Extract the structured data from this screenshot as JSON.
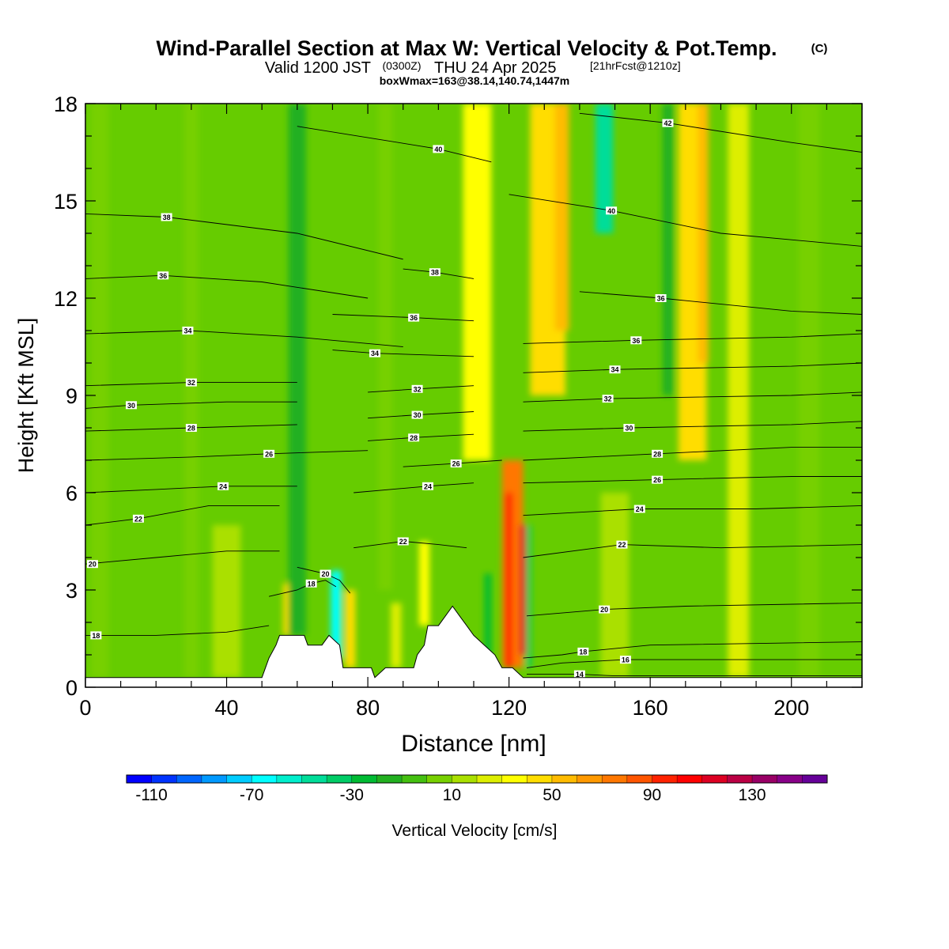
{
  "header": {
    "title": "Wind-Parallel Section at Max W: Vertical Velocity & Pot.Temp.",
    "title_mark": "(C)",
    "valid_prefix": "Valid 1200 JST",
    "valid_zulu": "(0300Z)",
    "valid_date": "THU 24 Apr 2025",
    "forecast_tag": "[21hrFcst@1210z]",
    "box_info": "boxWmax=163@38.14,140.74,1447m"
  },
  "chart_data": {
    "type": "heatmap",
    "xlabel": "Distance [nm]",
    "ylabel": "Height [Kft MSL]",
    "xlim": [
      0,
      220
    ],
    "ylim": [
      0,
      18
    ],
    "x_ticks": [
      "0",
      "40",
      "80",
      "120",
      "160",
      "200"
    ],
    "y_ticks": [
      "0",
      "3",
      "6",
      "9",
      "12",
      "15",
      "18"
    ],
    "colorbar": {
      "label": "Vertical Velocity [cm/s]",
      "tick_labels": [
        "-110",
        "-70",
        "-30",
        "10",
        "50",
        "90",
        "130"
      ],
      "colors": [
        "#0000ff",
        "#0033ff",
        "#0066ff",
        "#0099ff",
        "#00ccff",
        "#00ffff",
        "#00eecc",
        "#00dd99",
        "#00cc66",
        "#00bb33",
        "#22b020",
        "#44c010",
        "#77d000",
        "#aae000",
        "#ddee00",
        "#ffff00",
        "#ffdd00",
        "#ffbb00",
        "#ff9900",
        "#ff7700",
        "#ff5500",
        "#ff2200",
        "#ff0000",
        "#dd0022",
        "#bb0044",
        "#990066",
        "#880088",
        "#660099"
      ]
    },
    "background_color": "#66cc00",
    "terrain_profile": [
      [
        0,
        0.3
      ],
      [
        50,
        0.3
      ],
      [
        52,
        0.9
      ],
      [
        54,
        1.3
      ],
      [
        55,
        1.6
      ],
      [
        62,
        1.6
      ],
      [
        63,
        1.3
      ],
      [
        67,
        1.3
      ],
      [
        69,
        1.6
      ],
      [
        72,
        1.3
      ],
      [
        73,
        0.6
      ],
      [
        81,
        0.6
      ],
      [
        82,
        0.3
      ],
      [
        85,
        0.6
      ],
      [
        93,
        0.6
      ],
      [
        94,
        1.0
      ],
      [
        96,
        1.3
      ],
      [
        97,
        1.9
      ],
      [
        100,
        1.9
      ],
      [
        102,
        2.2
      ],
      [
        104,
        2.5
      ],
      [
        106,
        2.2
      ],
      [
        108,
        1.9
      ],
      [
        110,
        1.6
      ],
      [
        113,
        1.3
      ],
      [
        116,
        1.0
      ],
      [
        118,
        0.6
      ],
      [
        121,
        0.6
      ],
      [
        124,
        0.3
      ],
      [
        220,
        0.3
      ]
    ],
    "vv_bands": [
      {
        "x": 109,
        "width": 4,
        "y0": 7,
        "y1": 18,
        "value": 60
      },
      {
        "x": 111,
        "width": 8,
        "y0": 7,
        "y1": 18,
        "value": 30
      },
      {
        "x": 131,
        "width": 10,
        "y0": 9,
        "y1": 18,
        "value": 40
      },
      {
        "x": 135,
        "width": 4,
        "y0": 11,
        "y1": 18,
        "value": 55
      },
      {
        "x": 147,
        "width": 5,
        "y0": 14,
        "y1": 18,
        "value": -50
      },
      {
        "x": 165,
        "width": 3,
        "y0": 9,
        "y1": 18,
        "value": -20
      },
      {
        "x": 172,
        "width": 8,
        "y0": 7,
        "y1": 18,
        "value": 40
      },
      {
        "x": 175,
        "width": 3,
        "y0": 10,
        "y1": 18,
        "value": 55
      },
      {
        "x": 121,
        "width": 6,
        "y0": 0.6,
        "y1": 7,
        "value": 70
      },
      {
        "x": 120,
        "width": 2,
        "y0": 0.6,
        "y1": 6,
        "value": 95
      },
      {
        "x": 124,
        "width": 2,
        "y0": 1.0,
        "y1": 5,
        "value": 115
      },
      {
        "x": 125.5,
        "width": 1.5,
        "y0": 0.6,
        "y1": 5,
        "value": -40
      },
      {
        "x": 71,
        "width": 3,
        "y0": 0.9,
        "y1": 3.6,
        "value": -70
      },
      {
        "x": 75,
        "width": 3,
        "y0": 0.6,
        "y1": 3,
        "value": 40
      },
      {
        "x": 57,
        "width": 2,
        "y0": 1.6,
        "y1": 3.2,
        "value": 40
      },
      {
        "x": 96,
        "width": 3,
        "y0": 1.9,
        "y1": 4.5,
        "value": 30
      },
      {
        "x": 88,
        "width": 3,
        "y0": 0.6,
        "y1": 2.6,
        "value": 25
      },
      {
        "x": 114,
        "width": 2,
        "y0": 1.0,
        "y1": 3.5,
        "value": -30
      },
      {
        "x": 4,
        "width": 5,
        "y0": 0.3,
        "y1": 18,
        "value": 0
      },
      {
        "x": 30,
        "width": 4,
        "y0": 0.3,
        "y1": 18,
        "value": 0
      },
      {
        "x": 60,
        "width": 5,
        "y0": 1.6,
        "y1": 18,
        "value": -20
      },
      {
        "x": 85,
        "width": 4,
        "y0": 3,
        "y1": 18,
        "value": 0
      },
      {
        "x": 185,
        "width": 6,
        "y0": 0.3,
        "y1": 18,
        "value": 20
      },
      {
        "x": 205,
        "width": 6,
        "y0": 0.3,
        "y1": 18,
        "value": 0
      },
      {
        "x": 150,
        "width": 8,
        "y0": 0.3,
        "y1": 6,
        "value": 15
      },
      {
        "x": 40,
        "width": 8,
        "y0": 0.3,
        "y1": 5,
        "value": 15
      }
    ],
    "theta_contours": [
      {
        "label": "14",
        "lx": 140,
        "ly": 0.4,
        "points": [
          [
            125,
            0.4
          ],
          [
            140,
            0.4
          ],
          [
            150,
            0.35
          ],
          [
            170,
            0.35
          ],
          [
            220,
            0.35
          ]
        ]
      },
      {
        "label": "16",
        "lx": 153,
        "ly": 0.85,
        "points": [
          [
            125,
            0.6
          ],
          [
            135,
            0.75
          ],
          [
            153,
            0.85
          ],
          [
            180,
            0.85
          ],
          [
            220,
            0.85
          ]
        ]
      },
      {
        "label": "18",
        "lx": 141,
        "ly": 1.1,
        "points": [
          [
            124,
            0.9
          ],
          [
            135,
            1.0
          ],
          [
            141,
            1.1
          ],
          [
            160,
            1.3
          ],
          [
            220,
            1.4
          ]
        ]
      },
      {
        "label": "18",
        "lx": 3,
        "ly": 1.6,
        "points": [
          [
            0,
            1.6
          ],
          [
            20,
            1.6
          ],
          [
            40,
            1.7
          ],
          [
            52,
            1.9
          ]
        ]
      },
      {
        "label": "18",
        "lx": 64,
        "ly": 3.2,
        "points": [
          [
            52,
            2.8
          ],
          [
            60,
            3.0
          ],
          [
            64,
            3.2
          ],
          [
            68,
            3.3
          ],
          [
            71,
            3.1
          ]
        ]
      },
      {
        "label": "20",
        "lx": 147,
        "ly": 2.4,
        "points": [
          [
            125,
            2.2
          ],
          [
            147,
            2.4
          ],
          [
            170,
            2.5
          ],
          [
            220,
            2.6
          ]
        ]
      },
      {
        "label": "20",
        "lx": 2,
        "ly": 3.8,
        "points": [
          [
            0,
            3.8
          ],
          [
            20,
            4.0
          ],
          [
            40,
            4.2
          ],
          [
            55,
            4.2
          ]
        ]
      },
      {
        "label": "20",
        "lx": 68,
        "ly": 3.5,
        "points": [
          [
            60,
            3.7
          ],
          [
            68,
            3.5
          ],
          [
            72,
            3.3
          ],
          [
            75,
            2.9
          ]
        ]
      },
      {
        "label": "22",
        "lx": 152,
        "ly": 4.4,
        "points": [
          [
            124,
            4.0
          ],
          [
            152,
            4.4
          ],
          [
            180,
            4.3
          ],
          [
            220,
            4.4
          ]
        ]
      },
      {
        "label": "22",
        "lx": 90,
        "ly": 4.5,
        "points": [
          [
            76,
            4.3
          ],
          [
            90,
            4.5
          ],
          [
            100,
            4.4
          ],
          [
            108,
            4.3
          ]
        ]
      },
      {
        "label": "22",
        "lx": 15,
        "ly": 5.2,
        "points": [
          [
            0,
            5.0
          ],
          [
            15,
            5.2
          ],
          [
            35,
            5.6
          ],
          [
            55,
            5.6
          ]
        ]
      },
      {
        "label": "24",
        "lx": 157,
        "ly": 5.5,
        "points": [
          [
            124,
            5.3
          ],
          [
            157,
            5.5
          ],
          [
            190,
            5.5
          ],
          [
            220,
            5.6
          ]
        ]
      },
      {
        "label": "24",
        "lx": 97,
        "ly": 6.2,
        "points": [
          [
            76,
            6.0
          ],
          [
            97,
            6.2
          ],
          [
            110,
            6.3
          ]
        ]
      },
      {
        "label": "24",
        "lx": 39,
        "ly": 6.2,
        "points": [
          [
            0,
            6.0
          ],
          [
            20,
            6.1
          ],
          [
            39,
            6.2
          ],
          [
            60,
            6.2
          ]
        ]
      },
      {
        "label": "26",
        "lx": 162,
        "ly": 6.4,
        "points": [
          [
            124,
            6.3
          ],
          [
            162,
            6.4
          ],
          [
            200,
            6.5
          ],
          [
            220,
            6.5
          ]
        ]
      },
      {
        "label": "26",
        "lx": 52,
        "ly": 7.2,
        "points": [
          [
            0,
            7.0
          ],
          [
            30,
            7.1
          ],
          [
            52,
            7.2
          ],
          [
            80,
            7.3
          ]
        ]
      },
      {
        "label": "26",
        "lx": 105,
        "ly": 6.9,
        "points": [
          [
            90,
            6.8
          ],
          [
            105,
            6.9
          ],
          [
            118,
            7.0
          ]
        ]
      },
      {
        "label": "28",
        "lx": 162,
        "ly": 7.2,
        "points": [
          [
            124,
            7.0
          ],
          [
            162,
            7.2
          ],
          [
            200,
            7.4
          ],
          [
            220,
            7.4
          ]
        ]
      },
      {
        "label": "28",
        "lx": 30,
        "ly": 8.0,
        "points": [
          [
            0,
            7.9
          ],
          [
            30,
            8.0
          ],
          [
            60,
            8.1
          ]
        ]
      },
      {
        "label": "28",
        "lx": 93,
        "ly": 7.7,
        "points": [
          [
            80,
            7.6
          ],
          [
            93,
            7.7
          ],
          [
            110,
            7.8
          ]
        ]
      },
      {
        "label": "30",
        "lx": 154,
        "ly": 8.0,
        "points": [
          [
            124,
            7.9
          ],
          [
            154,
            8.0
          ],
          [
            200,
            8.1
          ],
          [
            220,
            8.2
          ]
        ]
      },
      {
        "label": "30",
        "lx": 13,
        "ly": 8.7,
        "points": [
          [
            0,
            8.6
          ],
          [
            13,
            8.7
          ],
          [
            40,
            8.8
          ],
          [
            60,
            8.8
          ]
        ]
      },
      {
        "label": "30",
        "lx": 94,
        "ly": 8.4,
        "points": [
          [
            80,
            8.3
          ],
          [
            94,
            8.4
          ],
          [
            110,
            8.5
          ]
        ]
      },
      {
        "label": "32",
        "lx": 148,
        "ly": 8.9,
        "points": [
          [
            124,
            8.8
          ],
          [
            148,
            8.9
          ],
          [
            200,
            9.0
          ],
          [
            220,
            9.1
          ]
        ]
      },
      {
        "label": "32",
        "lx": 30,
        "ly": 9.4,
        "points": [
          [
            0,
            9.3
          ],
          [
            30,
            9.4
          ],
          [
            60,
            9.4
          ]
        ]
      },
      {
        "label": "32",
        "lx": 94,
        "ly": 9.2,
        "points": [
          [
            80,
            9.1
          ],
          [
            94,
            9.2
          ],
          [
            110,
            9.3
          ]
        ]
      },
      {
        "label": "34",
        "lx": 150,
        "ly": 9.8,
        "points": [
          [
            124,
            9.7
          ],
          [
            150,
            9.8
          ],
          [
            200,
            9.9
          ],
          [
            220,
            10.0
          ]
        ]
      },
      {
        "label": "34",
        "lx": 29,
        "ly": 11.0,
        "points": [
          [
            0,
            10.9
          ],
          [
            29,
            11.0
          ],
          [
            60,
            10.8
          ],
          [
            90,
            10.5
          ]
        ]
      },
      {
        "label": "34",
        "lx": 82,
        "ly": 10.3,
        "points": [
          [
            70,
            10.4
          ],
          [
            82,
            10.3
          ],
          [
            110,
            10.2
          ]
        ]
      },
      {
        "label": "36",
        "lx": 156,
        "ly": 10.7,
        "points": [
          [
            124,
            10.6
          ],
          [
            156,
            10.7
          ],
          [
            200,
            10.8
          ],
          [
            220,
            10.9
          ]
        ]
      },
      {
        "label": "36",
        "lx": 93,
        "ly": 11.4,
        "points": [
          [
            70,
            11.5
          ],
          [
            93,
            11.4
          ],
          [
            110,
            11.3
          ]
        ]
      },
      {
        "label": "36",
        "lx": 22,
        "ly": 12.7,
        "points": [
          [
            0,
            12.6
          ],
          [
            22,
            12.7
          ],
          [
            50,
            12.5
          ],
          [
            80,
            12.0
          ]
        ]
      },
      {
        "label": "36",
        "lx": 163,
        "ly": 12.0,
        "points": [
          [
            140,
            12.2
          ],
          [
            163,
            12.0
          ],
          [
            200,
            11.6
          ],
          [
            220,
            11.5
          ]
        ]
      },
      {
        "label": "38",
        "lx": 23,
        "ly": 14.5,
        "points": [
          [
            0,
            14.6
          ],
          [
            23,
            14.5
          ],
          [
            60,
            14.0
          ],
          [
            90,
            13.2
          ]
        ]
      },
      {
        "label": "38",
        "lx": 99,
        "ly": 12.8,
        "points": [
          [
            90,
            12.9
          ],
          [
            99,
            12.8
          ],
          [
            110,
            12.6
          ]
        ]
      },
      {
        "label": "40",
        "lx": 149,
        "ly": 14.7,
        "points": [
          [
            120,
            15.2
          ],
          [
            149,
            14.7
          ],
          [
            180,
            14.0
          ],
          [
            220,
            13.6
          ]
        ]
      },
      {
        "label": "40",
        "lx": 100,
        "ly": 16.6,
        "points": [
          [
            60,
            17.3
          ],
          [
            100,
            16.6
          ],
          [
            115,
            16.2
          ]
        ]
      },
      {
        "label": "42",
        "lx": 165,
        "ly": 17.4,
        "points": [
          [
            140,
            17.7
          ],
          [
            165,
            17.4
          ],
          [
            200,
            16.8
          ],
          [
            220,
            16.5
          ]
        ]
      }
    ],
    "grid": false
  }
}
